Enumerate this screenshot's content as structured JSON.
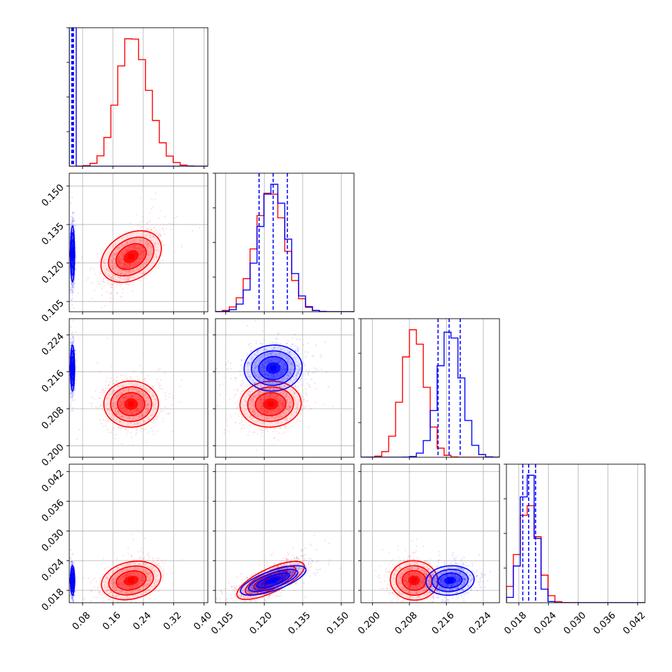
{
  "chart_data": {
    "type": "corner",
    "grid": true,
    "series": [
      {
        "colorKey": "blue"
      },
      {
        "colorKey": "red"
      }
    ],
    "colors": {
      "blue": "#0000ff",
      "red": "#ff0000"
    },
    "params": [
      {
        "range": [
          0.045,
          0.41
        ],
        "ticks": [
          0.08,
          0.16,
          0.24,
          0.32,
          0.4
        ],
        "tick_labels": [
          "0.08",
          "0.16",
          "0.24",
          "0.32",
          "0.40"
        ]
      },
      {
        "range": [
          0.101,
          0.155
        ],
        "ticks": [
          0.105,
          0.12,
          0.135,
          0.15
        ],
        "tick_labels": [
          "0.105",
          "0.120",
          "0.135",
          "0.150"
        ]
      },
      {
        "range": [
          0.1975,
          0.2275
        ],
        "ticks": [
          0.2,
          0.208,
          0.216,
          0.224
        ],
        "tick_labels": [
          "0.200",
          "0.208",
          "0.216",
          "0.224"
        ]
      },
      {
        "range": [
          0.0155,
          0.0435
        ],
        "ticks": [
          0.018,
          0.024,
          0.03,
          0.036,
          0.042
        ],
        "tick_labels": [
          "0.018",
          "0.024",
          "0.030",
          "0.036",
          "0.042"
        ]
      }
    ],
    "estimates": [
      {
        "blue": {
          "mean": 0.0535,
          "sd": 0.0025
        },
        "red": {
          "mean": 0.208,
          "sd": 0.036
        }
      },
      {
        "blue": {
          "mean": 0.1235,
          "sd": 0.0055
        },
        "red": {
          "mean": 0.1225,
          "sd": 0.0058
        }
      },
      {
        "blue": {
          "mean": 0.2168,
          "sd": 0.0025
        },
        "red": {
          "mean": 0.209,
          "sd": 0.0025
        }
      },
      {
        "blue": {
          "mean": 0.02,
          "sd": 0.0015
        },
        "red": {
          "mean": 0.02,
          "sd": 0.002
        }
      }
    ],
    "quantile_lines": [
      {
        "series": "blue",
        "values": [
          0.0515,
          0.053,
          0.0545,
          0.056
        ]
      },
      {
        "series": "blue",
        "values": [
          0.118,
          0.1235,
          0.129
        ]
      },
      {
        "series": "blue",
        "values": [
          0.2142,
          0.2166,
          0.219
        ]
      },
      {
        "series": "blue",
        "values": [
          0.0188,
          0.02,
          0.0214
        ]
      }
    ],
    "correlations": {
      "1-0": {
        "blue": 0.0,
        "red": 0.65
      },
      "2-0": {
        "blue": 0.0,
        "red": 0.0
      },
      "2-1": {
        "blue": 0.1,
        "red": 0.1
      },
      "3-0": {
        "blue": 0.0,
        "red": 0.35
      },
      "3-1": {
        "blue": 0.75,
        "red": 0.8
      },
      "3-2": {
        "blue": 0.15,
        "red": -0.1
      }
    }
  }
}
